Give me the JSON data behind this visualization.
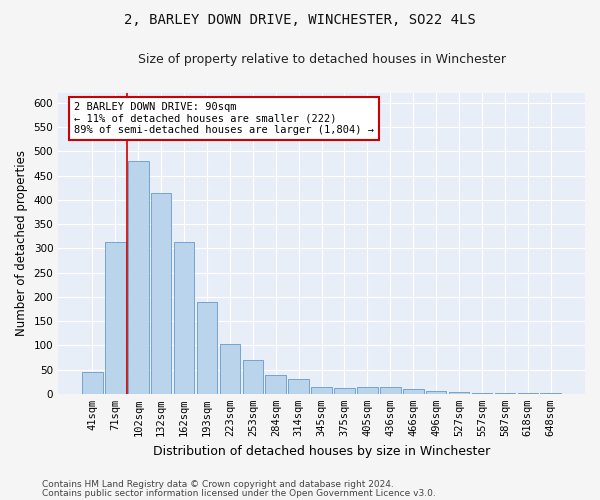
{
  "title": "2, BARLEY DOWN DRIVE, WINCHESTER, SO22 4LS",
  "subtitle": "Size of property relative to detached houses in Winchester",
  "xlabel": "Distribution of detached houses by size in Winchester",
  "ylabel": "Number of detached properties",
  "categories": [
    "41sqm",
    "71sqm",
    "102sqm",
    "132sqm",
    "162sqm",
    "193sqm",
    "223sqm",
    "253sqm",
    "284sqm",
    "314sqm",
    "345sqm",
    "375sqm",
    "405sqm",
    "436sqm",
    "466sqm",
    "496sqm",
    "527sqm",
    "557sqm",
    "587sqm",
    "618sqm",
    "648sqm"
  ],
  "values": [
    45,
    312,
    480,
    413,
    312,
    190,
    102,
    69,
    38,
    30,
    15,
    11,
    13,
    13,
    9,
    5,
    4,
    1,
    1,
    1,
    1
  ],
  "bar_color": "#bad4ec",
  "bar_edge_color": "#6699cc",
  "marker_color": "#cc0000",
  "ylim": [
    0,
    620
  ],
  "yticks": [
    0,
    50,
    100,
    150,
    200,
    250,
    300,
    350,
    400,
    450,
    500,
    550,
    600
  ],
  "annotation_text": "2 BARLEY DOWN DRIVE: 90sqm\n← 11% of detached houses are smaller (222)\n89% of semi-detached houses are larger (1,804) →",
  "annotation_box_color": "#ffffff",
  "annotation_box_edge": "#cc0000",
  "footer_line1": "Contains HM Land Registry data © Crown copyright and database right 2024.",
  "footer_line2": "Contains public sector information licensed under the Open Government Licence v3.0.",
  "bg_color": "#e8eef8",
  "fig_bg_color": "#f5f5f5",
  "grid_color": "#ffffff",
  "title_fontsize": 10,
  "subtitle_fontsize": 9,
  "axis_label_fontsize": 8.5,
  "tick_fontsize": 7.5,
  "annotation_fontsize": 7.5,
  "footer_fontsize": 6.5
}
